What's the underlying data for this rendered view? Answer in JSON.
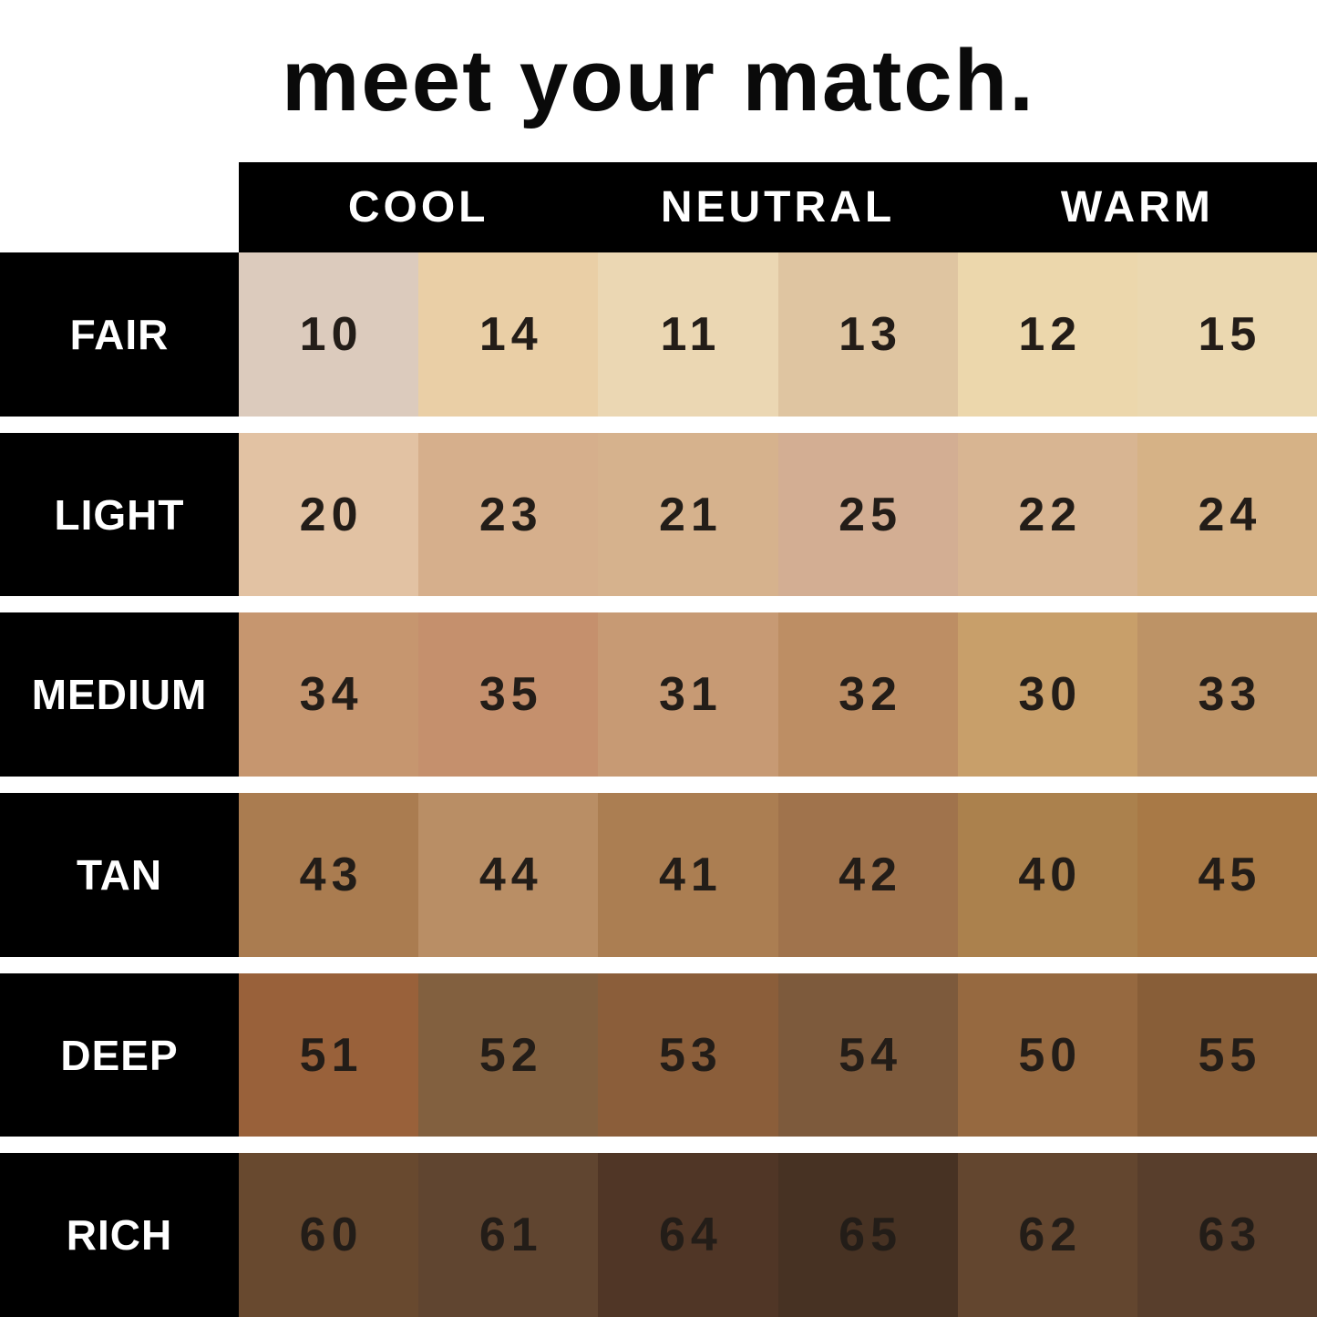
{
  "title": "meet your match.",
  "colors": {
    "background": "#ffffff",
    "bar": "#000000",
    "header_text": "#ffffff",
    "label_text": "#ffffff",
    "number_text": "#231d18",
    "title_text": "#0a0a0a"
  },
  "chart_data": {
    "type": "heatmap",
    "title": "meet your match.",
    "legend_position": "top",
    "column_groups": [
      "COOL",
      "NEUTRAL",
      "WARM"
    ],
    "columns_per_group": 2,
    "column_undertones": [
      "COOL",
      "COOL",
      "NEUTRAL",
      "NEUTRAL",
      "WARM",
      "WARM"
    ],
    "rows": [
      {
        "label": "FAIR",
        "shades": [
          {
            "num": "10",
            "hex": "#dccbbd"
          },
          {
            "num": "14",
            "hex": "#eacfa6"
          },
          {
            "num": "11",
            "hex": "#ebd7b3"
          },
          {
            "num": "13",
            "hex": "#dfc5a1"
          },
          {
            "num": "12",
            "hex": "#ecd7ac"
          },
          {
            "num": "15",
            "hex": "#ebd8b0"
          }
        ]
      },
      {
        "label": "LIGHT",
        "shades": [
          {
            "num": "20",
            "hex": "#e2c2a3"
          },
          {
            "num": "23",
            "hex": "#d6af8c"
          },
          {
            "num": "21",
            "hex": "#d6b28d"
          },
          {
            "num": "25",
            "hex": "#d3ae93"
          },
          {
            "num": "22",
            "hex": "#d8b592"
          },
          {
            "num": "24",
            "hex": "#d6b286"
          }
        ]
      },
      {
        "label": "MEDIUM",
        "shades": [
          {
            "num": "34",
            "hex": "#c6966f"
          },
          {
            "num": "35",
            "hex": "#c5906d"
          },
          {
            "num": "31",
            "hex": "#c79a74"
          },
          {
            "num": "32",
            "hex": "#bd8e64"
          },
          {
            "num": "30",
            "hex": "#c89f6a"
          },
          {
            "num": "33",
            "hex": "#bd9366"
          }
        ]
      },
      {
        "label": "TAN",
        "shades": [
          {
            "num": "43",
            "hex": "#aa7c50"
          },
          {
            "num": "44",
            "hex": "#b98e65"
          },
          {
            "num": "41",
            "hex": "#ab7e52"
          },
          {
            "num": "42",
            "hex": "#a0734c"
          },
          {
            "num": "40",
            "hex": "#ab814d"
          },
          {
            "num": "45",
            "hex": "#a87946"
          }
        ]
      },
      {
        "label": "DEEP",
        "shades": [
          {
            "num": "51",
            "hex": "#99613a"
          },
          {
            "num": "52",
            "hex": "#82603f"
          },
          {
            "num": "53",
            "hex": "#8b5e3a"
          },
          {
            "num": "54",
            "hex": "#7d5a3c"
          },
          {
            "num": "50",
            "hex": "#966940"
          },
          {
            "num": "55",
            "hex": "#885e38"
          }
        ]
      },
      {
        "label": "RICH",
        "shades": [
          {
            "num": "60",
            "hex": "#68492f"
          },
          {
            "num": "61",
            "hex": "#604530"
          },
          {
            "num": "64",
            "hex": "#503626"
          },
          {
            "num": "65",
            "hex": "#473223"
          },
          {
            "num": "62",
            "hex": "#63462f"
          },
          {
            "num": "63",
            "hex": "#583e2c"
          }
        ]
      }
    ]
  }
}
